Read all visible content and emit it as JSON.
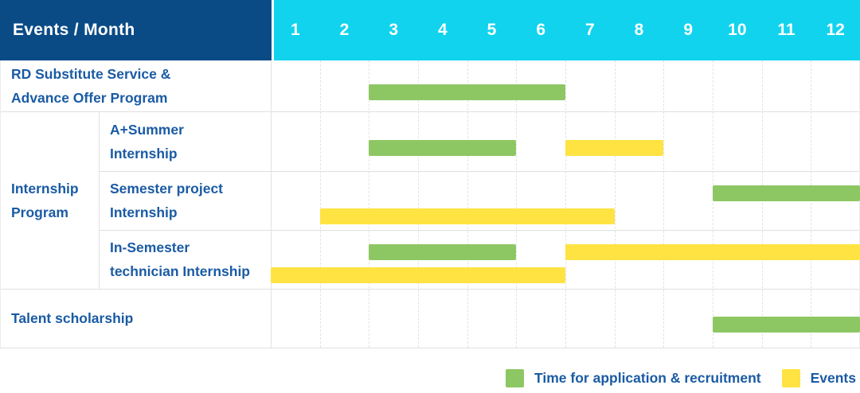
{
  "colors": {
    "navy": "#0a4b86",
    "cyan": "#11d3ee",
    "green": "#8dc763",
    "yellow": "#ffe342",
    "text_blue": "#1a5ba4"
  },
  "table": {
    "group_cell": {
      "line1": "Internship",
      "line2": "Program"
    }
  },
  "chart_data": {
    "type": "bar",
    "variant": "gantt-schedule",
    "title": "Events / Month",
    "header_label": "Events / Month",
    "months": [
      "1",
      "2",
      "3",
      "4",
      "5",
      "6",
      "7",
      "8",
      "9",
      "10",
      "11",
      "12"
    ],
    "x_range": [
      1,
      12
    ],
    "grid": "dashed-vertical-month-lines",
    "legend_position": "bottom-right",
    "legend": [
      {
        "key": "application",
        "label": "Time for application & recruitment",
        "color": "#8dc763"
      },
      {
        "key": "events",
        "label": "Events",
        "color": "#ffe342"
      }
    ],
    "rows": [
      {
        "group": "",
        "label": "RD Substitute Service & Advance Offer Program",
        "label_lines": [
          "RD Substitute Service &",
          "Advance Offer Program"
        ],
        "bars": [
          {
            "type": "application",
            "start_month": 3,
            "end_month": 6,
            "line": 0
          }
        ]
      },
      {
        "group": "Internship Program",
        "label": "A+Summer Internship",
        "label_lines": [
          "A+Summer",
          "Internship"
        ],
        "bars": [
          {
            "type": "application",
            "start_month": 3,
            "end_month": 5,
            "line": 0
          },
          {
            "type": "events",
            "start_month": 7,
            "end_month": 8,
            "line": 0
          }
        ]
      },
      {
        "group": "Internship Program",
        "label": "Semester project Internship",
        "label_lines": [
          "Semester project",
          "Internship"
        ],
        "bars": [
          {
            "type": "application",
            "start_month": 10,
            "end_month": 12,
            "line": 0
          },
          {
            "type": "events",
            "start_month": 2,
            "end_month": 7,
            "line": 1
          }
        ]
      },
      {
        "group": "Internship Program",
        "label": "In-Semester technician Internship",
        "label_lines": [
          "In-Semester",
          "technician Internship"
        ],
        "bars": [
          {
            "type": "application",
            "start_month": 3,
            "end_month": 5,
            "line": 0
          },
          {
            "type": "events",
            "start_month": 7,
            "end_month": 12,
            "line": 0
          },
          {
            "type": "events",
            "start_month": 1,
            "end_month": 6,
            "line": 1
          }
        ]
      },
      {
        "group": "",
        "label": "Talent scholarship",
        "label_lines": [
          "Talent scholarship"
        ],
        "bars": [
          {
            "type": "application",
            "start_month": 10,
            "end_month": 12,
            "line": 0
          }
        ]
      }
    ]
  }
}
